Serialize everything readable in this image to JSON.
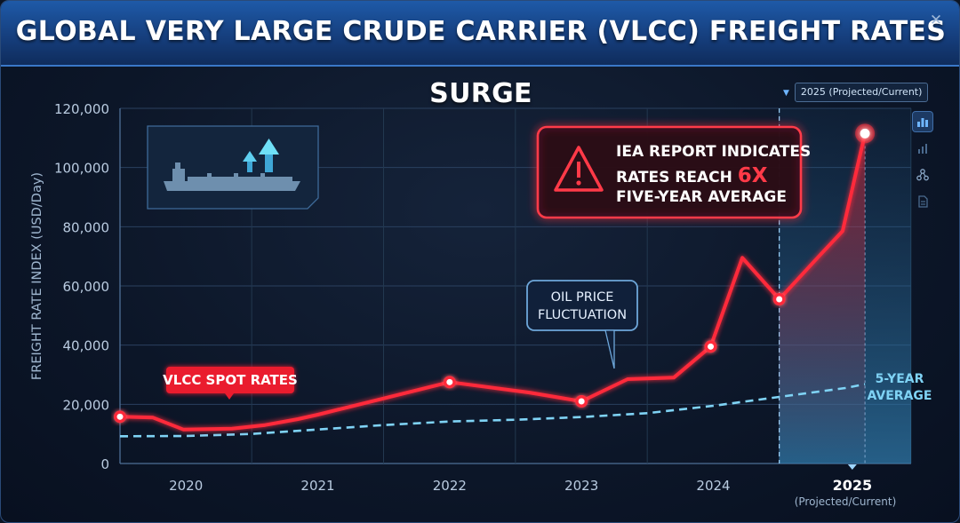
{
  "window": {
    "title": "GLOBAL VERY LARGE CRUDE CARRIER (VLCC) FREIGHT RATES SURGE",
    "close_glyph": "✕"
  },
  "toolbar": {
    "projection_label": "2025 (Projected/Current)",
    "tools": [
      {
        "name": "bar-chart-icon",
        "active": true
      },
      {
        "name": "column-chart-icon",
        "active": false
      },
      {
        "name": "network-icon",
        "active": false
      },
      {
        "name": "document-icon",
        "active": false
      }
    ]
  },
  "colors": {
    "spot_line": "#ff2a3a",
    "average_line": "#7fd3f5",
    "projection_band": "#2f78a8",
    "callout_border": "#ff3a48",
    "accent_blue": "#6fb6ff"
  },
  "annotations": {
    "spot_label": "VLCC SPOT RATES",
    "oil_price_line1": "OIL PRICE",
    "oil_price_line2": "FLUCTUATION",
    "iea_line1": "IEA REPORT INDICATES",
    "iea_line2_pre": "RATES REACH ",
    "iea_line2_em": "6X",
    "iea_line3": "FIVE-YEAR AVERAGE",
    "avg_line1": "5-YEAR",
    "avg_line2": "AVERAGE",
    "projected_sub": "(Projected/Current)"
  },
  "chart_data": {
    "type": "line",
    "title": "GLOBAL VERY LARGE CRUDE CARRIER (VLCC) FREIGHT RATES SURGE",
    "xlabel": "",
    "ylabel": "FREIGHT RATE INDEX (USD/Day)",
    "ylim": [
      0,
      120000
    ],
    "xlim": [
      2019.5,
      2025.5
    ],
    "y_ticks": [
      0,
      20000,
      40000,
      60000,
      80000,
      100000,
      120000
    ],
    "y_tick_labels": [
      "0",
      "20,000",
      "40,000",
      "60,000",
      "80,000",
      "100,000",
      "120,000"
    ],
    "x_ticks": [
      2020,
      2021,
      2022,
      2023,
      2024,
      2025
    ],
    "x_tick_labels": [
      "2020",
      "2021",
      "2022",
      "2023",
      "2024",
      "2025"
    ],
    "grid": true,
    "projection_start": 2024.5,
    "series": [
      {
        "name": "VLCC SPOT RATES",
        "x": [
          2019.5,
          2019.75,
          2019.98,
          2020.35,
          2020.6,
          2020.85,
          2021.0,
          2021.5,
          2022.0,
          2022.6,
          2023.0,
          2023.35,
          2023.7,
          2023.98,
          2024.22,
          2024.5,
          2024.8,
          2024.98,
          2025.15
        ],
        "y": [
          15800,
          15500,
          11500,
          11800,
          13000,
          15000,
          16500,
          22000,
          27500,
          24000,
          21000,
          28500,
          29000,
          39500,
          69500,
          55500,
          70000,
          78500,
          111500
        ],
        "markers": [
          0,
          8,
          10,
          13,
          15,
          18
        ]
      },
      {
        "name": "5-YEAR AVERAGE",
        "x": [
          2019.5,
          2020.0,
          2020.5,
          2021.0,
          2021.5,
          2022.0,
          2022.5,
          2023.0,
          2023.5,
          2024.0,
          2024.5,
          2025.0,
          2025.15
        ],
        "y": [
          9200,
          9300,
          10000,
          11500,
          13000,
          14200,
          14800,
          15700,
          17000,
          19500,
          22500,
          25500,
          26800
        ]
      }
    ]
  }
}
